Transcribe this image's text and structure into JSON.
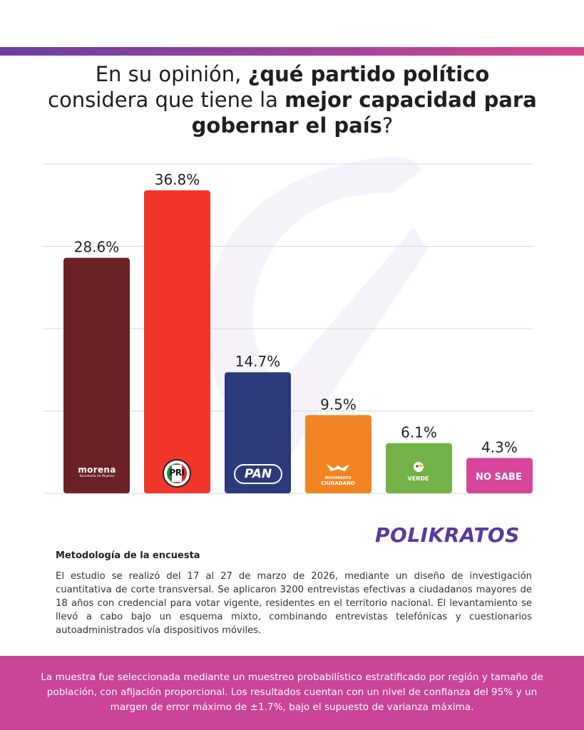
{
  "header": {
    "title_parts": [
      {
        "text": "En su opinión, ",
        "bold": false
      },
      {
        "text": "¿qué partido político",
        "bold": true
      },
      {
        "text": " considera que tiene la ",
        "bold": false
      },
      {
        "text": "mejor capacidad para gobernar el país",
        "bold": true
      },
      {
        "text": "?",
        "bold": false
      }
    ]
  },
  "chart_data": {
    "type": "bar",
    "categories": [
      "morena",
      "PRI",
      "PAN",
      "Movimiento Ciudadano",
      "Verde",
      "NO SABE"
    ],
    "values": [
      28.6,
      36.8,
      14.7,
      9.5,
      6.1,
      4.3
    ],
    "value_labels": [
      "28.6%",
      "36.8%",
      "14.7%",
      "9.5%",
      "6.1%",
      "4.3%"
    ],
    "colors": [
      "#6b2226",
      "#f2362a",
      "#2b3a7a",
      "#f28522",
      "#72b247",
      "#d6469a"
    ],
    "ylim": [
      0,
      40
    ],
    "grid": true,
    "title": "",
    "xlabel": "",
    "ylabel": ""
  },
  "logos": {
    "morena": "morena",
    "morena_sub": "Secretaría de Mujeres",
    "pri": "PRI",
    "pan": "PAN",
    "mc_top": "MOVIMIENTO",
    "mc_bottom": "CIUDADANO",
    "verde": "VERDE",
    "no_sabe": "NO SABE"
  },
  "brand": {
    "name": "POLIKRATOS",
    "color": "#5a3a9a"
  },
  "methodology": {
    "title": "Metodología de la encuesta",
    "body": "El estudio se realizó del 17 al 27 de marzo de 2026, mediante un diseño de investigación cuantitativa de corte transversal. Se aplicaron 3200 entrevistas efectivas a ciudadanos mayores de 18 años con credencial para votar vigente, residentes en el territorio nacional. El levantamiento se llevó a cabo bajo un esquema mixto, combinando entrevistas telefónicas y cuestionarios autoadministrados vía dispositivos móviles."
  },
  "footer": {
    "text": "La muestra fue seleccionada mediante un muestreo probabilístico estratificado por región y tamaño de población, con afijación proporcional. Los resultados cuentan con un nivel de confianza del 95% y un margen de error máximo de ±1.7%, bajo el supuesto de varianza máxima.",
    "background": "#c94495"
  }
}
